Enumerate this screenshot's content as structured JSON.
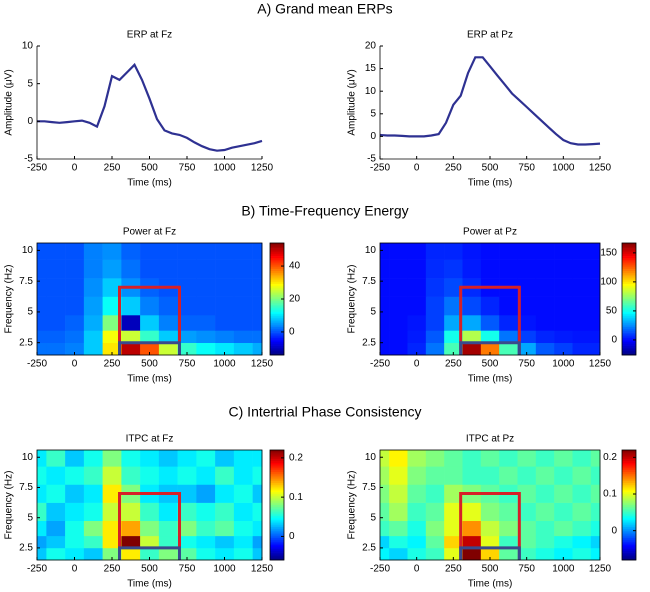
{
  "sections": [
    "A) Grand mean ERPs",
    "B) Time-Frequency Energy",
    "C) Intertrial Phase Consistency"
  ],
  "chart_data": [
    {
      "type": "line",
      "title": "ERP at Fz",
      "xlabel": "Time (ms)",
      "ylabel": "Amplitude (μV)",
      "color": "#2e3192",
      "x": [
        -250,
        -200,
        -150,
        -100,
        -50,
        0,
        50,
        100,
        150,
        200,
        250,
        300,
        350,
        400,
        450,
        500,
        550,
        600,
        650,
        700,
        750,
        800,
        850,
        900,
        950,
        1000,
        1050,
        1100,
        1150,
        1200,
        1250
      ],
      "values": [
        0,
        0,
        -0.1,
        -0.2,
        -0.1,
        0,
        0.1,
        -0.2,
        -0.7,
        2,
        6,
        5.5,
        6.5,
        7.5,
        5.5,
        3,
        0.3,
        -1.2,
        -1.6,
        -1.8,
        -2.2,
        -2.8,
        -3.3,
        -3.7,
        -3.9,
        -3.8,
        -3.5,
        -3.3,
        -3.1,
        -2.9,
        -2.6
      ],
      "xlim": [
        -250,
        1250
      ],
      "xticks": [
        -250,
        0,
        250,
        500,
        750,
        1000,
        1250
      ],
      "ylim": [
        -5,
        10
      ],
      "yticks": [
        -5,
        0,
        5,
        10
      ]
    },
    {
      "type": "line",
      "title": "ERP at Pz",
      "xlabel": "Time (ms)",
      "ylabel": "Amplitude (μV)",
      "color": "#2e3192",
      "x": [
        -250,
        -200,
        -150,
        -100,
        -50,
        0,
        50,
        100,
        150,
        200,
        250,
        300,
        350,
        400,
        450,
        500,
        550,
        600,
        650,
        700,
        750,
        800,
        850,
        900,
        950,
        1000,
        1050,
        1100,
        1150,
        1200,
        1250
      ],
      "values": [
        0.3,
        0.2,
        0.2,
        0.1,
        0,
        0,
        0,
        0.2,
        0.5,
        3,
        7,
        9,
        14,
        17.5,
        17.5,
        15.5,
        13.5,
        11.5,
        9.5,
        8,
        6.5,
        5,
        3.5,
        2,
        0.5,
        -0.8,
        -1.5,
        -1.8,
        -1.8,
        -1.7,
        -1.6
      ],
      "xlim": [
        -250,
        1250
      ],
      "xticks": [
        -250,
        0,
        250,
        500,
        750,
        1000,
        1250
      ],
      "ylim": [
        -5,
        20
      ],
      "yticks": [
        -5,
        0,
        5,
        10,
        15,
        20
      ]
    },
    {
      "type": "heatmap",
      "title": "Power at Fz",
      "xlabel": "Time (ms)",
      "ylabel": "Frequency (Hz)",
      "colormap": "jet",
      "x": [
        -250,
        -125,
        0,
        125,
        250,
        375,
        500,
        625,
        750,
        875,
        1000,
        1125,
        1250
      ],
      "y": [
        2,
        3,
        4,
        5.5,
        7,
        8.5,
        10
      ],
      "z": [
        [
          2,
          2,
          3,
          8,
          30,
          50,
          40,
          25,
          15,
          12,
          10,
          8,
          6
        ],
        [
          1,
          1,
          2,
          8,
          28,
          25,
          15,
          8,
          5,
          4,
          3,
          2,
          2
        ],
        [
          0,
          0,
          1,
          6,
          20,
          -10,
          8,
          3,
          1,
          1,
          0,
          0,
          0
        ],
        [
          0,
          0,
          0,
          5,
          12,
          8,
          3,
          1,
          0,
          0,
          0,
          0,
          0
        ],
        [
          0,
          0,
          0,
          4,
          8,
          4,
          1,
          0,
          0,
          0,
          0,
          0,
          0
        ],
        [
          0,
          0,
          0,
          3,
          5,
          2,
          0,
          0,
          0,
          0,
          0,
          0,
          0
        ],
        [
          0,
          0,
          0,
          3,
          4,
          1,
          0,
          0,
          0,
          0,
          0,
          0,
          0
        ]
      ],
      "xlim": [
        -250,
        1250
      ],
      "xticks": [
        -250,
        0,
        250,
        500,
        750,
        1000,
        1250
      ],
      "ylim": [
        1.5,
        10.6
      ],
      "yticks": [
        2.5,
        5,
        7.5,
        10
      ],
      "zlim": [
        -14,
        54
      ],
      "zticks": [
        0,
        20,
        40
      ],
      "boxes": [
        {
          "color": "#d62028",
          "x": [
            300,
            700
          ],
          "top": 7
        },
        {
          "color": "#3a4a8c",
          "x": [
            300,
            700
          ],
          "top": 2.5
        }
      ]
    },
    {
      "type": "heatmap",
      "title": "Power at Pz",
      "xlabel": "Time (ms)",
      "ylabel": "Frequency (Hz)",
      "colormap": "jet",
      "x": [
        -250,
        -125,
        0,
        125,
        250,
        375,
        500,
        625,
        750,
        875,
        1000,
        1125,
        1250
      ],
      "y": [
        2,
        3,
        4,
        5.5,
        7,
        8.5,
        10
      ],
      "z": [
        [
          0,
          0,
          5,
          20,
          60,
          160,
          120,
          60,
          30,
          15,
          10,
          5,
          5
        ],
        [
          0,
          0,
          3,
          15,
          50,
          80,
          50,
          20,
          10,
          5,
          3,
          2,
          2
        ],
        [
          0,
          0,
          2,
          10,
          30,
          30,
          15,
          5,
          2,
          0,
          0,
          0,
          0
        ],
        [
          0,
          0,
          0,
          10,
          20,
          12,
          5,
          0,
          0,
          0,
          0,
          0,
          0
        ],
        [
          0,
          0,
          0,
          8,
          12,
          6,
          0,
          0,
          0,
          0,
          0,
          0,
          0
        ],
        [
          0,
          0,
          0,
          6,
          8,
          3,
          0,
          0,
          0,
          0,
          0,
          0,
          0
        ],
        [
          0,
          0,
          0,
          5,
          5,
          2,
          0,
          0,
          0,
          0,
          0,
          0,
          0
        ]
      ],
      "xlim": [
        -250,
        1250
      ],
      "xticks": [
        -250,
        0,
        250,
        500,
        750,
        1000,
        1250
      ],
      "ylim": [
        1.5,
        10.6
      ],
      "yticks": [
        2.5,
        5,
        7.5,
        10
      ],
      "zlim": [
        -26,
        167
      ],
      "zticks": [
        0,
        50,
        100,
        150
      ],
      "boxes": [
        {
          "color": "#d62028",
          "x": [
            300,
            700
          ],
          "top": 7
        },
        {
          "color": "#3a4a8c",
          "x": [
            300,
            700
          ],
          "top": 2.5
        }
      ]
    },
    {
      "type": "heatmap",
      "title": "ITPC at Fz",
      "xlabel": "Time (ms)",
      "ylabel": "Frequency (Hz)",
      "colormap": "jet",
      "x": [
        -250,
        -125,
        0,
        125,
        250,
        375,
        500,
        625,
        750,
        875,
        1000,
        1125,
        1250
      ],
      "y": [
        2,
        3,
        4,
        5.5,
        7,
        8.5,
        10
      ],
      "z": [
        [
          0.03,
          0.05,
          0.04,
          0.03,
          0.08,
          0.12,
          0.06,
          0.08,
          0.07,
          0.05,
          0.04,
          0.05,
          0.03
        ],
        [
          0.02,
          0.03,
          0.05,
          0.06,
          0.12,
          0.22,
          0.1,
          0.06,
          0.05,
          0.04,
          0.03,
          0.04,
          0.02
        ],
        [
          0.04,
          0.02,
          0.05,
          0.08,
          0.12,
          0.14,
          0.08,
          0.06,
          0.08,
          0.06,
          0.07,
          0.05,
          0.04
        ],
        [
          0.06,
          0.03,
          0.04,
          0.05,
          0.1,
          0.1,
          0.06,
          0.04,
          0.06,
          0.05,
          0.06,
          0.04,
          0.05
        ],
        [
          0.04,
          0.05,
          0.03,
          0.04,
          0.12,
          0.08,
          0.04,
          0.03,
          0.03,
          0.02,
          0.04,
          0.05,
          0.03
        ],
        [
          0.05,
          0.04,
          0.05,
          0.06,
          0.1,
          0.06,
          0.05,
          0.04,
          0.05,
          0.04,
          0.06,
          0.04,
          0.05
        ],
        [
          0.04,
          0.06,
          0.03,
          0.05,
          0.08,
          0.05,
          0.04,
          0.03,
          0.04,
          0.05,
          0.03,
          0.04,
          0.04
        ]
      ],
      "xlim": [
        -250,
        1250
      ],
      "xticks": [
        -250,
        0,
        250,
        500,
        750,
        1000,
        1250
      ],
      "ylim": [
        1.5,
        10.6
      ],
      "yticks": [
        2.5,
        5,
        7.5,
        10
      ],
      "zlim": [
        -0.06,
        0.22
      ],
      "zticks": [
        0,
        0.1,
        0.2
      ],
      "boxes": [
        {
          "color": "#d62028",
          "x": [
            300,
            700
          ],
          "top": 7
        },
        {
          "color": "#3a4a8c",
          "x": [
            300,
            700
          ],
          "top": 2.5
        }
      ]
    },
    {
      "type": "heatmap",
      "title": "ITPC at Pz",
      "xlabel": "Time (ms)",
      "ylabel": "Frequency (Hz)",
      "colormap": "jet",
      "x": [
        -250,
        -125,
        0,
        125,
        250,
        375,
        500,
        625,
        750,
        875,
        1000,
        1125,
        1250
      ],
      "y": [
        2,
        3,
        4,
        5.5,
        7,
        8.5,
        10
      ],
      "z": [
        [
          0.03,
          0.02,
          0.04,
          0.05,
          0.1,
          0.22,
          0.12,
          0.06,
          0.05,
          0.04,
          0.03,
          0.04,
          0.03
        ],
        [
          0.02,
          0.04,
          0.03,
          0.06,
          0.12,
          0.2,
          0.1,
          0.05,
          0.06,
          0.05,
          0.04,
          0.03,
          0.02
        ],
        [
          0.05,
          0.06,
          0.04,
          0.07,
          0.1,
          0.14,
          0.09,
          0.07,
          0.06,
          0.05,
          0.06,
          0.05,
          0.04
        ],
        [
          0.06,
          0.08,
          0.05,
          0.06,
          0.1,
          0.1,
          0.07,
          0.06,
          0.05,
          0.06,
          0.05,
          0.06,
          0.05
        ],
        [
          0.07,
          0.09,
          0.06,
          0.05,
          0.08,
          0.07,
          0.06,
          0.05,
          0.06,
          0.05,
          0.06,
          0.05,
          0.06
        ],
        [
          0.08,
          0.1,
          0.07,
          0.06,
          0.06,
          0.05,
          0.05,
          0.06,
          0.05,
          0.06,
          0.05,
          0.06,
          0.05
        ],
        [
          0.09,
          0.11,
          0.08,
          0.07,
          0.06,
          0.05,
          0.06,
          0.05,
          0.06,
          0.05,
          0.06,
          0.05,
          0.06
        ]
      ],
      "xlim": [
        -250,
        1250
      ],
      "xticks": [
        -250,
        0,
        250,
        500,
        750,
        1000,
        1250
      ],
      "ylim": [
        1.5,
        10.6
      ],
      "yticks": [
        2.5,
        5,
        7.5,
        10
      ],
      "zlim": [
        -0.08,
        0.22
      ],
      "zticks": [
        0,
        0.1,
        0.2
      ],
      "boxes": [
        {
          "color": "#d62028",
          "x": [
            300,
            700
          ],
          "top": 7
        },
        {
          "color": "#3a4a8c",
          "x": [
            300,
            700
          ],
          "top": 2.5
        }
      ]
    }
  ]
}
